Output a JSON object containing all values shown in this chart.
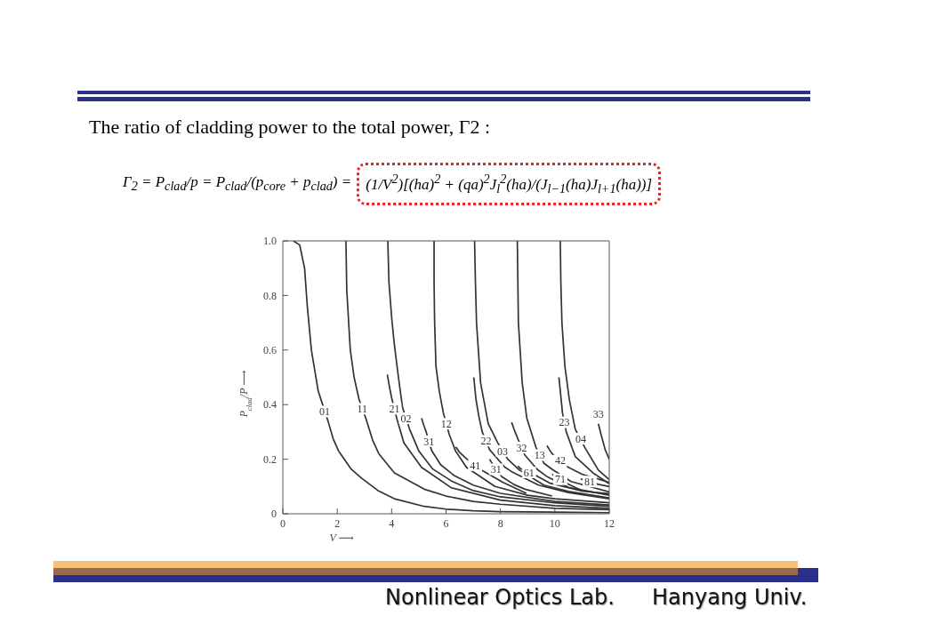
{
  "chart_data": {
    "type": "line",
    "title": "The ratio of cladding power to the total power, Γ2 :",
    "xlabel": "V ⟶",
    "ylabel": "P$_{clad}$/P ⟶",
    "xlim": [
      0,
      12
    ],
    "ylim": [
      0,
      1
    ],
    "xticks": [
      0,
      2,
      4,
      6,
      8,
      10,
      12
    ],
    "yticks": [
      0,
      0.2,
      0.4,
      0.6,
      0.8,
      {
        "value": 1,
        "label": "1.0"
      }
    ],
    "color": "#333333",
    "marker": "none",
    "annotations": [
      "Γ$_{2}$ = P$_{clad}$/p = P$_{clad}$/(p$_{core}$ + p$_{clad}$) =",
      "(1/V$^{2}$)[(ha)$^{2}$ + (qa)$^{2}$J$_{l}$$^{2}$(ha)/(J$_{l−1}$(ha)J$_{l+1}$(ha))]",
      "Nonlinear Optics Lab.",
      "Hanyang Univ."
    ],
    "series": [
      {
        "name": "01",
        "x": [
          0.39,
          0.62,
          0.8,
          0.9,
          1.05,
          1.3,
          1.43,
          1.54,
          1.66,
          1.85,
          2.05,
          2.5,
          2.9,
          3.5,
          4.1,
          5.2,
          6,
          7,
          8,
          10,
          12
        ],
        "values": [
          1.0,
          0.985,
          0.9,
          0.76,
          0.6,
          0.45,
          0.41,
          null,
          0.34,
          0.275,
          0.23,
          0.165,
          0.13,
          0.085,
          0.055,
          0.027,
          0.017,
          0.011,
          0.008,
          0.006,
          0.004
        ]
      },
      {
        "name": "11",
        "x": [
          2.32,
          2.35,
          2.48,
          2.62,
          2.8,
          2.92,
          3.05,
          3.3,
          3.53,
          4.1,
          5.2,
          6,
          7,
          8,
          10,
          12
        ],
        "values": [
          1.0,
          0.82,
          0.6,
          0.5,
          0.42,
          null,
          0.35,
          0.27,
          0.22,
          0.15,
          0.09,
          0.065,
          0.045,
          0.035,
          0.02,
          0.015
        ]
      },
      {
        "name": "21",
        "x": [
          3.84,
          3.93,
          4.0,
          4.1,
          4.2,
          4.45,
          5.1,
          6.2,
          8,
          10,
          12
        ],
        "values": [
          0.51,
          0.46,
          0.425,
          null,
          0.345,
          0.26,
          0.17,
          0.095,
          0.05,
          0.03,
          0.02
        ]
      },
      {
        "name": "02",
        "x": [
          3.86,
          3.9,
          4.0,
          4.1,
          4.25,
          4.4,
          4.53,
          4.66,
          5.0,
          5.5,
          6.2,
          7,
          8,
          10,
          12
        ],
        "values": [
          1.0,
          0.85,
          0.72,
          0.62,
          0.5,
          0.39,
          null,
          0.31,
          0.23,
          0.165,
          0.12,
          0.085,
          0.062,
          0.04,
          0.027
        ]
      },
      {
        "name": "31",
        "x": [
          5.1,
          5.18,
          5.27,
          5.37,
          5.47,
          5.8,
          6.3,
          7,
          8,
          10,
          12
        ],
        "values": [
          0.35,
          0.325,
          0.3,
          null,
          0.232,
          0.18,
          0.14,
          0.105,
          0.075,
          0.045,
          0.032
        ]
      },
      {
        "name": "12",
        "x": [
          5.56,
          5.56,
          5.58,
          5.63,
          5.75,
          5.9,
          6.01,
          6.12,
          6.35,
          6.75,
          7.8,
          9,
          10,
          12
        ],
        "values": [
          1.0,
          0.85,
          0.7,
          0.54,
          0.45,
          0.37,
          null,
          0.29,
          0.23,
          0.17,
          0.1,
          0.068,
          0.055,
          0.04
        ]
      },
      {
        "name": "41",
        "x": [
          6.36,
          6.5,
          6.77,
          7.07,
          7.37,
          8.1,
          8.95
        ],
        "values": [
          0.245,
          0.225,
          0.2,
          null,
          0.156,
          0.115,
          0.075
        ]
      },
      {
        "name": "22",
        "x": [
          7.02,
          7.1,
          7.2,
          7.33,
          7.47,
          7.6,
          8.15,
          8.4,
          9.4,
          10.5,
          12
        ],
        "values": [
          0.5,
          0.42,
          0.36,
          0.3,
          null,
          0.235,
          0.172,
          0.155,
          0.105,
          0.078,
          0.055
        ]
      },
      {
        "name": "03",
        "x": [
          7.05,
          7.08,
          7.12,
          7.27,
          7.55,
          7.9,
          8.08,
          8.27,
          8.7,
          9.6,
          10.5,
          12
        ],
        "values": [
          1.0,
          0.85,
          0.7,
          0.48,
          0.33,
          0.26,
          null,
          0.2,
          0.16,
          0.105,
          0.082,
          0.058
        ]
      },
      {
        "name": "31",
        "x": [
          7.6,
          7.66,
          7.84,
          8.05,
          8.5,
          8.9,
          9.9
        ],
        "values": [
          0.2,
          0.19,
          null,
          0.136,
          0.107,
          0.09,
          0.065
        ]
      },
      {
        "name": "32",
        "x": [
          8.41,
          8.5,
          8.66,
          8.78,
          8.9,
          9.35,
          9.7,
          10.5,
          12
        ],
        "values": [
          0.335,
          0.31,
          0.27,
          null,
          0.215,
          0.163,
          0.137,
          0.097,
          0.068
        ]
      },
      {
        "name": "13",
        "x": [
          8.62,
          8.64,
          8.66,
          8.8,
          8.97,
          9.3,
          9.44,
          9.6,
          9.9,
          10.6,
          12
        ],
        "values": [
          1.0,
          0.85,
          0.7,
          0.48,
          0.35,
          0.245,
          null,
          0.185,
          0.163,
          0.118,
          0.08
        ]
      },
      {
        "name": "61",
        "x": [
          8.64,
          8.74,
          9.05,
          9.35,
          9.8,
          11,
          12
        ],
        "values": [
          0.175,
          0.165,
          null,
          0.138,
          0.113,
          0.083,
          0.074
        ]
      },
      {
        "name": "42",
        "x": [
          9.71,
          9.8,
          9.9,
          10.2,
          10.5,
          11,
          12
        ],
        "values": [
          0.25,
          0.235,
          0.22,
          null,
          0.17,
          0.145,
          0.115
        ]
      },
      {
        "name": "71",
        "x": [
          9.9,
          10.2,
          10.5,
          11,
          12
        ],
        "values": [
          0.145,
          null,
          0.108,
          0.085,
          0.07
        ]
      },
      {
        "name": "23",
        "x": [
          10.15,
          10.2,
          10.28,
          10.35,
          10.42,
          10.75,
          11.4,
          12
        ],
        "values": [
          0.5,
          0.45,
          0.37,
          null,
          0.3,
          0.21,
          0.15,
          0.11
        ]
      },
      {
        "name": "04",
        "x": [
          10.2,
          10.22,
          10.26,
          10.37,
          10.53,
          10.75,
          10.95,
          11.12,
          11.6,
          12
        ],
        "values": [
          1.0,
          0.85,
          0.7,
          0.54,
          0.42,
          0.31,
          null,
          0.24,
          0.16,
          0.125
        ]
      },
      {
        "name": "81",
        "x": [
          10.95,
          11.28,
          11.6,
          12
        ],
        "values": [
          0.128,
          null,
          0.108,
          0.1
        ]
      },
      {
        "name": "33",
        "x": [
          11.6,
          11.7,
          11.85,
          12
        ],
        "values": [
          0.33,
          0.29,
          0.235,
          0.2
        ]
      }
    ]
  }
}
